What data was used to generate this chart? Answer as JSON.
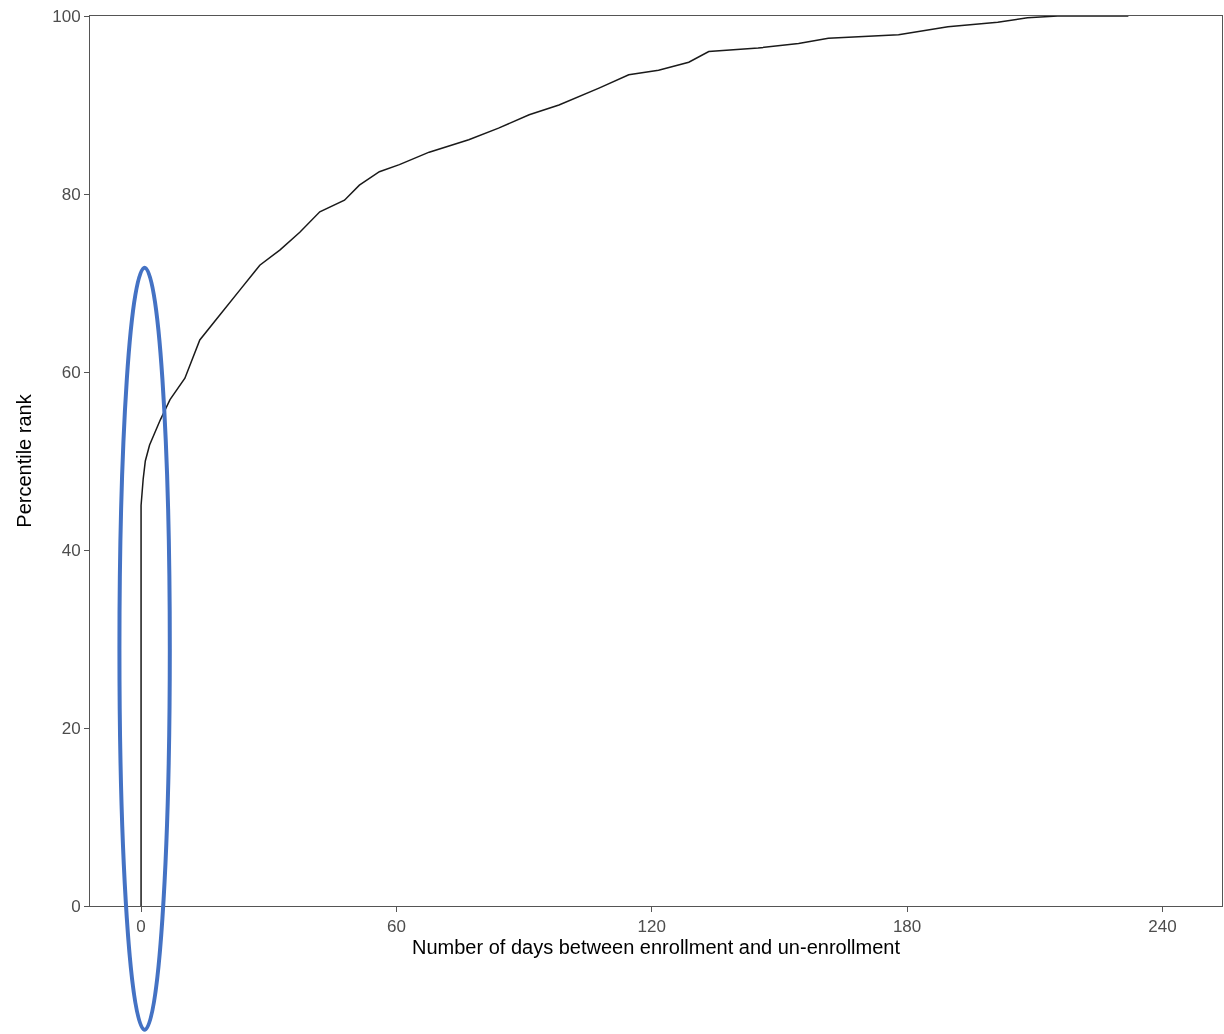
{
  "chart_data": {
    "type": "line",
    "xlabel": "Number of days between enrollment and un-enrollment",
    "ylabel": "Percentile rank",
    "x": [
      0,
      0,
      0.5,
      1,
      2,
      4.5,
      6.8,
      10.3,
      13.8,
      18.5,
      23.2,
      27.9,
      32.6,
      37.3,
      42,
      47.8,
      51.3,
      56,
      60.7,
      67.7,
      77,
      84,
      91.2,
      98.2,
      107.6,
      114.6,
      121.6,
      128.7,
      133.4,
      145,
      154.5,
      161.5,
      178,
      189.6,
      201.3,
      208.3,
      215.4,
      232
    ],
    "series": [
      {
        "color": "#1a1a1a",
        "values": [
          0,
          45,
          48,
          50,
          51.8,
          54.6,
          56.9,
          59.3,
          63.6,
          66.4,
          69.2,
          72.0,
          73.7,
          75.7,
          78.0,
          79.3,
          81.0,
          82.5,
          83.3,
          84.7,
          86.1,
          87.4,
          88.9,
          90.0,
          91.9,
          93.4,
          93.9,
          94.8,
          96.0,
          96.4,
          96.9,
          97.5,
          97.9,
          98.8,
          99.3,
          99.8,
          100,
          100
        ]
      }
    ],
    "xlim": [
      -12,
      254
    ],
    "xticks": [
      0,
      60,
      120,
      180,
      240
    ],
    "ylim": [
      0,
      100
    ],
    "yticks": [
      0,
      20,
      40,
      60,
      80,
      100
    ],
    "marker": "none",
    "line_style": "solid"
  }
}
